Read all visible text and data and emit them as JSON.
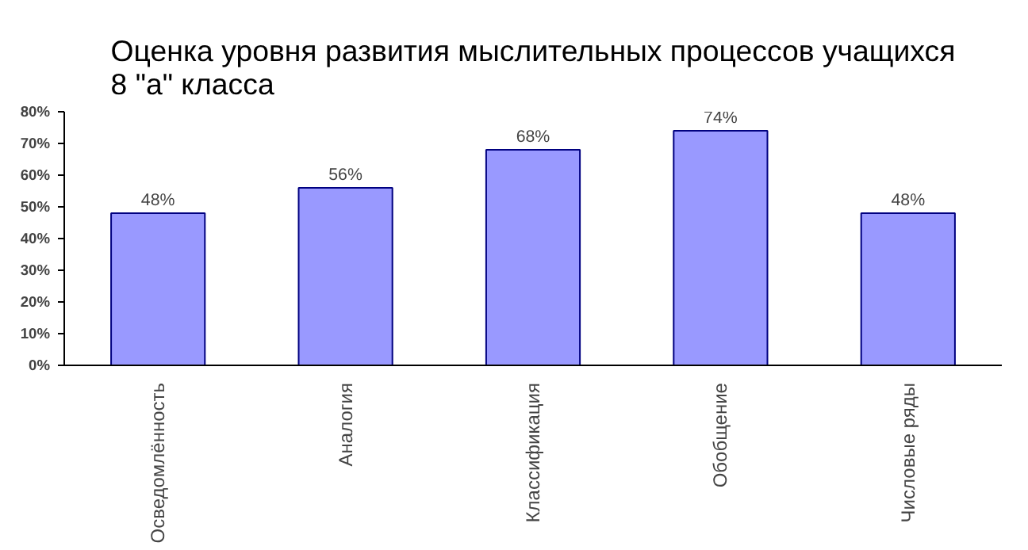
{
  "chart_data": {
    "type": "bar",
    "title": "Оценка уровня развития мыслительных процессов учащихся 8 \"а\" класса",
    "categories": [
      "Осведомлённость",
      "Аналогия",
      "Классификация",
      "Обобщение",
      "Числовые ряды"
    ],
    "values": [
      48,
      56,
      68,
      74,
      48
    ],
    "value_labels": [
      "48%",
      "56%",
      "68%",
      "74%",
      "48%"
    ],
    "color": "#9999ff",
    "ylim": [
      0,
      80
    ],
    "yticks": [
      {
        "value": 0,
        "label": "0%"
      },
      {
        "value": 10,
        "label": "10%"
      },
      {
        "value": 20,
        "label": "20%"
      },
      {
        "value": 30,
        "label": "30%"
      },
      {
        "value": 40,
        "label": "40%"
      },
      {
        "value": 50,
        "label": "50%"
      },
      {
        "value": 60,
        "label": "60%"
      },
      {
        "value": 70,
        "label": "70%"
      },
      {
        "value": 80,
        "label": "80%"
      }
    ],
    "grid": false
  }
}
